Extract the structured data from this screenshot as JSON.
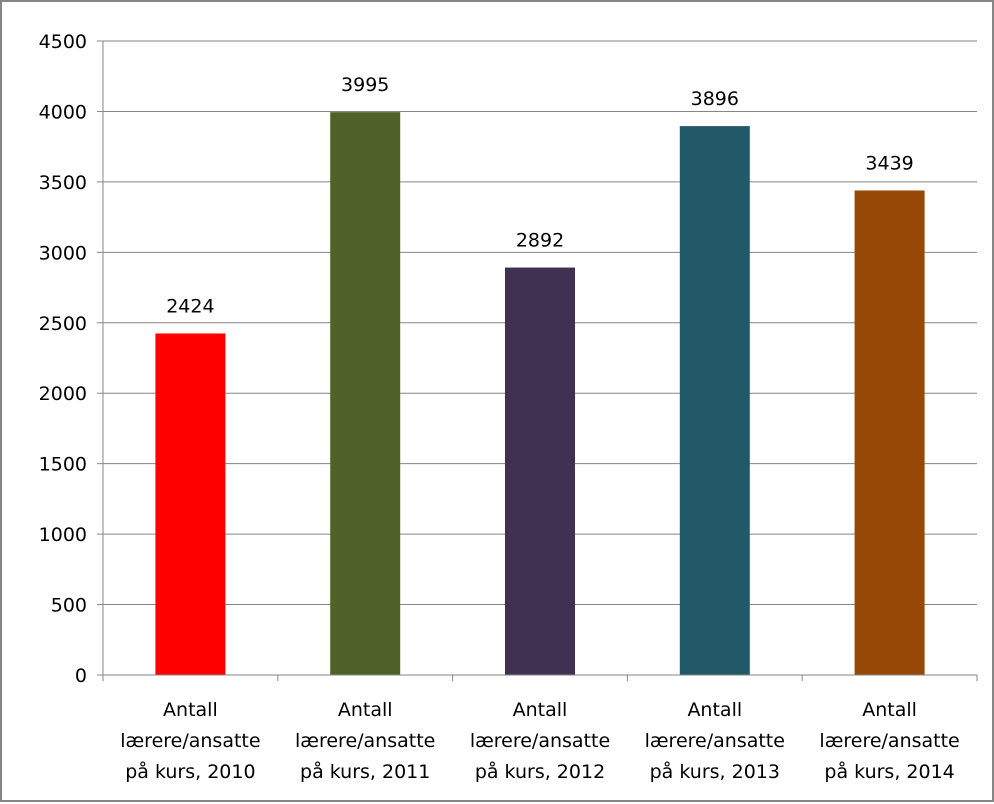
{
  "chart_data": {
    "type": "bar",
    "title": "",
    "xlabel": "",
    "ylabel": "",
    "categories": [
      [
        "Antall",
        "lærere/ansatte",
        "på kurs, 2010"
      ],
      [
        "Antall",
        "lærere/ansatte",
        "på kurs, 2011"
      ],
      [
        "Antall",
        "lærere/ansatte",
        "på kurs, 2012"
      ],
      [
        "Antall",
        "lærere/ansatte",
        "på kurs, 2013"
      ],
      [
        "Antall",
        "lærere/ansatte",
        "på kurs, 2014"
      ]
    ],
    "values": [
      2424,
      3995,
      2892,
      3896,
      3439
    ],
    "data_labels": [
      "2424",
      "3995",
      "2892",
      "3896",
      "3439"
    ],
    "bar_colors": [
      "#ff0000",
      "#4f6228",
      "#403152",
      "#215968",
      "#974806"
    ],
    "ylim": [
      0,
      4500
    ],
    "yticks": [
      0,
      500,
      1000,
      1500,
      2000,
      2500,
      3000,
      3500,
      4000,
      4500
    ],
    "grid": true,
    "legend": "none"
  }
}
